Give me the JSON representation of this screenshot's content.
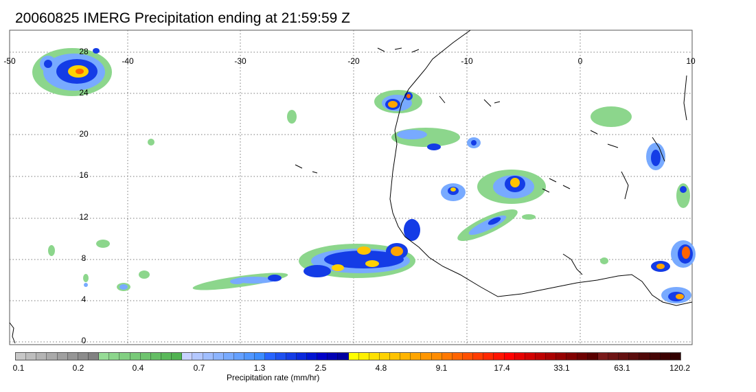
{
  "title": "20060825 IMERG Precipitation ending at 21:59:59 Z",
  "map": {
    "lon_labels": [
      "-50",
      "-40",
      "-30",
      "-20",
      "-10",
      "0",
      "10"
    ],
    "lat_labels": [
      "28",
      "24",
      "20",
      "16",
      "12",
      "8",
      "4",
      "0"
    ],
    "colors": {
      "frame": "#555555",
      "grid": "#777777",
      "coast": "#000000"
    }
  },
  "colorbar": {
    "colors": [
      "#c8c8c8",
      "#bebebe",
      "#b4b4b4",
      "#aaaaaa",
      "#a0a0a0",
      "#969696",
      "#8c8c8c",
      "#828282",
      "#96dc96",
      "#8cd68c",
      "#82d082",
      "#78ca78",
      "#6ec46e",
      "#64be64",
      "#5ab85a",
      "#50b250",
      "#c8d2ff",
      "#b4c8ff",
      "#a0beff",
      "#8cb4ff",
      "#78aaff",
      "#64a0ff",
      "#5096ff",
      "#3c8cff",
      "#2864ff",
      "#1e50f0",
      "#143ce6",
      "#0a28dc",
      "#0014d2",
      "#0000c8",
      "#0000b4",
      "#0000a0",
      "#ffff00",
      "#fff000",
      "#ffe100",
      "#ffd200",
      "#ffc300",
      "#ffb400",
      "#ffa500",
      "#ff9600",
      "#ff8c00",
      "#ff7800",
      "#ff6400",
      "#ff5000",
      "#ff3c00",
      "#ff2800",
      "#ff1400",
      "#ff0000",
      "#e60000",
      "#d20000",
      "#be0000",
      "#aa0000",
      "#960000",
      "#820000",
      "#6e0000",
      "#5a0000",
      "#7a1a1a",
      "#6e1414",
      "#641010",
      "#5a0c0c",
      "#500808",
      "#460404",
      "#3c0000",
      "#320000"
    ],
    "ticks": [
      "0.1",
      "0.2",
      "0.4",
      "0.7",
      "1.3",
      "2.5",
      "4.8",
      "9.1",
      "17.4",
      "33.1",
      "63.1",
      "120.2"
    ],
    "title": "Precipitation rate (mm/hr)"
  }
}
